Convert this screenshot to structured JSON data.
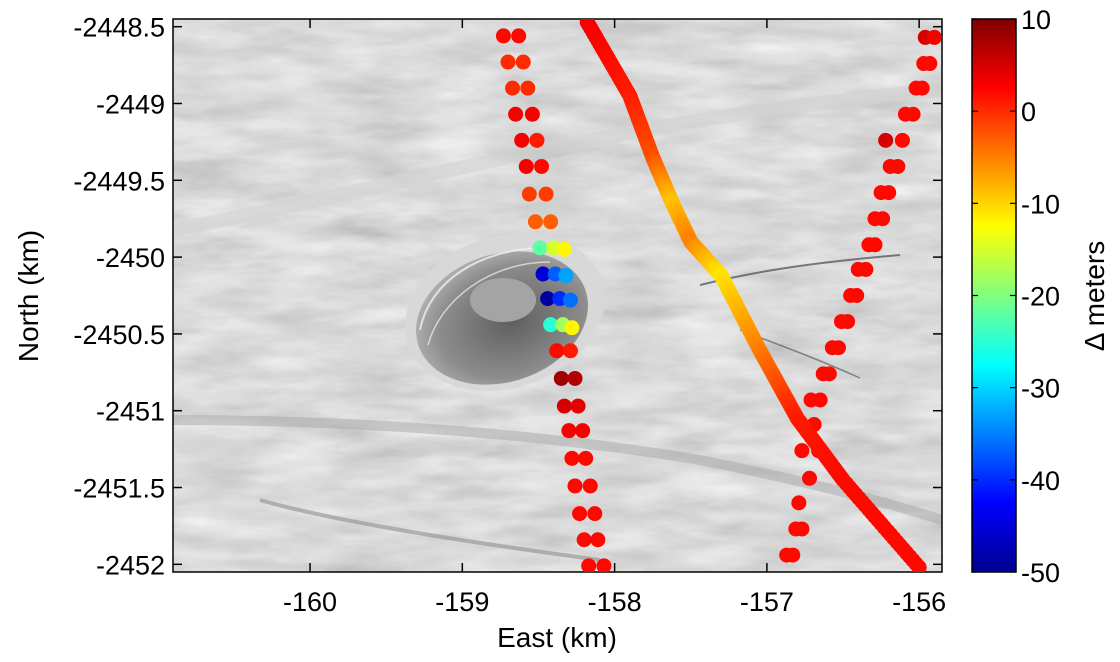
{
  "chart_data": {
    "type": "scatter",
    "title": "",
    "xlabel": "East (km)",
    "ylabel": "North (km)",
    "xlim": [
      -160.9,
      -155.85
    ],
    "ylim": [
      -2452.05,
      -2448.45
    ],
    "xticks": [
      -160,
      -159,
      -158,
      -157,
      -156
    ],
    "yticks": [
      -2448.5,
      -2449,
      -2449.5,
      -2450,
      -2450.5,
      -2451,
      -2451.5,
      -2452
    ],
    "background": "grayscale shaded-relief ice surface image with a collapse basin centred near (-158.9, -2450.3)",
    "colorbar": {
      "label": "Δ meters",
      "colormap": "jet",
      "clim": [
        -50,
        10
      ],
      "ticks": [
        10,
        0,
        -10,
        -20,
        -30,
        -40,
        -50
      ]
    },
    "series": [
      {
        "track": "west",
        "points": [
          [
            -158.73,
            -2448.56,
            2
          ],
          [
            -158.63,
            -2448.56,
            2
          ],
          [
            -158.7,
            -2448.73,
            0
          ],
          [
            -158.6,
            -2448.73,
            0
          ],
          [
            -158.67,
            -2448.9,
            0
          ],
          [
            -158.57,
            -2448.9,
            0
          ],
          [
            -158.65,
            -2449.07,
            3
          ],
          [
            -158.54,
            -2449.07,
            3
          ],
          [
            -158.61,
            -2449.24,
            3
          ],
          [
            -158.51,
            -2449.24,
            1
          ],
          [
            -158.58,
            -2449.41,
            3
          ],
          [
            -158.48,
            -2449.41,
            2
          ],
          [
            -158.56,
            -2449.59,
            -1
          ],
          [
            -158.45,
            -2449.59,
            -1
          ],
          [
            -158.52,
            -2449.77,
            -3
          ],
          [
            -158.42,
            -2449.77,
            -3
          ],
          [
            -158.49,
            -2449.94,
            -22
          ],
          [
            -158.4,
            -2449.94,
            -15
          ],
          [
            -158.33,
            -2449.95,
            -12
          ],
          [
            -158.47,
            -2450.11,
            -45
          ],
          [
            -158.39,
            -2450.11,
            -37
          ],
          [
            -158.32,
            -2450.12,
            -33
          ],
          [
            -158.44,
            -2450.27,
            -48
          ],
          [
            -158.36,
            -2450.27,
            -40
          ],
          [
            -158.29,
            -2450.28,
            -36
          ],
          [
            -158.42,
            -2450.44,
            -25
          ],
          [
            -158.34,
            -2450.44,
            -18
          ],
          [
            -158.28,
            -2450.46,
            -12
          ],
          [
            -158.38,
            -2450.61,
            2
          ],
          [
            -158.29,
            -2450.61,
            1
          ],
          [
            -158.35,
            -2450.79,
            8
          ],
          [
            -158.26,
            -2450.79,
            7
          ],
          [
            -158.33,
            -2450.97,
            5
          ],
          [
            -158.24,
            -2450.97,
            4
          ],
          [
            -158.3,
            -2451.13,
            3
          ],
          [
            -158.21,
            -2451.13,
            3
          ],
          [
            -158.28,
            -2451.31,
            2
          ],
          [
            -158.19,
            -2451.31,
            2
          ],
          [
            -158.26,
            -2451.49,
            2
          ],
          [
            -158.16,
            -2451.49,
            2
          ],
          [
            -158.23,
            -2451.67,
            2
          ],
          [
            -158.13,
            -2451.67,
            2
          ],
          [
            -158.2,
            -2451.84,
            2
          ],
          [
            -158.11,
            -2451.84,
            2
          ],
          [
            -158.17,
            -2452.01,
            2
          ],
          [
            -158.07,
            -2452.01,
            2
          ]
        ]
      },
      {
        "track": "east",
        "points": [
          [
            -155.96,
            -2448.57,
            5
          ],
          [
            -155.9,
            -2448.57,
            3
          ],
          [
            -155.97,
            -2448.74,
            2
          ],
          [
            -155.93,
            -2448.74,
            2
          ],
          [
            -156.02,
            -2448.9,
            2
          ],
          [
            -155.98,
            -2448.9,
            2
          ],
          [
            -156.09,
            -2449.07,
            2
          ],
          [
            -156.04,
            -2449.07,
            2
          ],
          [
            -156.22,
            -2449.24,
            5
          ],
          [
            -156.11,
            -2449.24,
            2
          ],
          [
            -156.19,
            -2449.41,
            2
          ],
          [
            -156.14,
            -2449.41,
            2
          ],
          [
            -156.25,
            -2449.58,
            2
          ],
          [
            -156.2,
            -2449.58,
            2
          ],
          [
            -156.29,
            -2449.75,
            2
          ],
          [
            -156.24,
            -2449.75,
            2
          ],
          [
            -156.33,
            -2449.92,
            2
          ],
          [
            -156.29,
            -2449.92,
            2
          ],
          [
            -156.4,
            -2450.08,
            2
          ],
          [
            -156.35,
            -2450.08,
            2
          ],
          [
            -156.45,
            -2450.25,
            2
          ],
          [
            -156.41,
            -2450.25,
            2
          ],
          [
            -156.51,
            -2450.42,
            2
          ],
          [
            -156.47,
            -2450.42,
            2
          ],
          [
            -156.57,
            -2450.59,
            2
          ],
          [
            -156.53,
            -2450.59,
            2
          ],
          [
            -156.63,
            -2450.76,
            2
          ],
          [
            -156.59,
            -2450.76,
            2
          ],
          [
            -156.71,
            -2450.93,
            2
          ],
          [
            -156.65,
            -2450.93,
            2
          ],
          [
            -156.69,
            -2451.09,
            2
          ],
          [
            -156.77,
            -2451.26,
            2
          ],
          [
            -156.66,
            -2451.26,
            2
          ],
          [
            -156.72,
            -2451.44,
            2
          ],
          [
            -156.79,
            -2451.6,
            2
          ],
          [
            -156.81,
            -2451.77,
            2
          ],
          [
            -156.77,
            -2451.77,
            2
          ],
          [
            -156.87,
            -2451.94,
            2
          ],
          [
            -156.83,
            -2451.94,
            2
          ]
        ]
      },
      {
        "track": "diagonal",
        "line": [
          [
            -158.18,
            -2448.47,
            3
          ],
          [
            -157.9,
            -2448.95,
            1
          ],
          [
            -157.75,
            -2449.35,
            -2
          ],
          [
            -157.62,
            -2449.65,
            -9
          ],
          [
            -157.5,
            -2449.9,
            -5
          ],
          [
            -157.3,
            -2450.12,
            -11
          ],
          [
            -157.05,
            -2450.6,
            -5
          ],
          [
            -156.8,
            -2451.05,
            1
          ],
          [
            -156.5,
            -2451.45,
            2
          ],
          [
            -156.0,
            -2452.02,
            2
          ]
        ]
      }
    ]
  }
}
